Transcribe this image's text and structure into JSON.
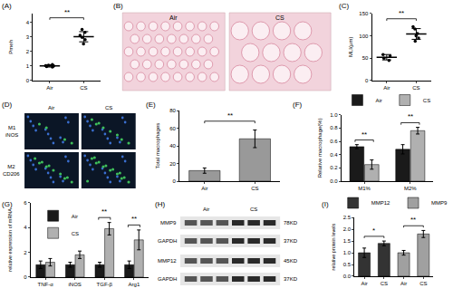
{
  "chart_data": [
    {
      "panel": "(A)",
      "type": "dot",
      "ylabel": "Pmeh",
      "categories": [
        "Air",
        "CS"
      ],
      "points": [
        [
          0.95,
          1.0,
          1.05,
          1.1,
          0.92,
          1.02
        ],
        [
          2.5,
          2.8,
          2.95,
          3.1,
          3.3,
          3.5
        ]
      ],
      "values": [
        1.0,
        3.0
      ],
      "errors": [
        0.08,
        0.35
      ],
      "color": "#000000",
      "ylim": [
        0,
        4.6
      ],
      "yticks": [
        0,
        1,
        2,
        3,
        4
      ],
      "annotations": [
        {
          "text": "**",
          "from": 0,
          "to": 1,
          "y": 4.3
        }
      ]
    },
    {
      "panel": "(C)",
      "type": "dot",
      "ylabel": "MLI(μm)",
      "categories": [
        "Air",
        "CS"
      ],
      "points": [
        [
          45,
          50,
          55,
          58
        ],
        [
          88,
          95,
          100,
          105,
          115,
          120
        ]
      ],
      "values": [
        52,
        104
      ],
      "errors": [
        6,
        12
      ],
      "color": "#000000",
      "ylim": [
        0,
        150
      ],
      "yticks": [
        0,
        50,
        100,
        150
      ],
      "annotations": [
        {
          "text": "**",
          "from": 0,
          "to": 1,
          "y": 138
        }
      ]
    },
    {
      "panel": "(E)",
      "type": "bar",
      "ylabel": "Total macrophages",
      "categories": [
        "Air",
        "CS"
      ],
      "values": [
        12,
        48
      ],
      "errors": [
        3,
        10
      ],
      "color": "#999999",
      "ylim": [
        0,
        80
      ],
      "yticks": [
        0,
        20,
        40,
        60,
        80
      ],
      "annotations": [
        {
          "text": "**",
          "from": 0,
          "to": 1,
          "y": 68
        }
      ]
    },
    {
      "panel": "(F)",
      "type": "bar",
      "ylabel": "Relative macrophage(%)",
      "categories": [
        "M1%",
        "M2%"
      ],
      "series": [
        {
          "name": "Air",
          "color": "#1a1a1a",
          "values": [
            0.52,
            0.48
          ],
          "errors": [
            0.03,
            0.07
          ]
        },
        {
          "name": "CS",
          "color": "#b0b0b0",
          "values": [
            0.25,
            0.76
          ],
          "errors": [
            0.07,
            0.05
          ]
        }
      ],
      "ylim": [
        0,
        1
      ],
      "yticks": [
        {
          "value": 0,
          "label": "0.0"
        },
        0.2,
        0.4,
        0.6,
        0.8,
        {
          "value": 1,
          "label": "1.0"
        }
      ],
      "legend": "top",
      "annotations": [
        {
          "text": "**",
          "category": 0,
          "y": 0.62
        },
        {
          "text": "**",
          "category": 1,
          "y": 0.88
        }
      ]
    },
    {
      "panel": "(G)",
      "type": "bar",
      "ylabel": "relative expression of mRNA",
      "categories": [
        "TNF-α",
        "iNOS",
        "TGF-β",
        "Arg1"
      ],
      "series": [
        {
          "name": "Air",
          "color": "#1a1a1a",
          "values": [
            1,
            1,
            1,
            1
          ],
          "errors": [
            0.3,
            0.2,
            0.2,
            0.3
          ]
        },
        {
          "name": "CS",
          "color": "#b0b0b0",
          "values": [
            1.2,
            1.8,
            3.9,
            3.0
          ],
          "errors": [
            0.3,
            0.3,
            0.5,
            0.8
          ]
        }
      ],
      "ylim": [
        0,
        6
      ],
      "yticks": [
        0,
        2,
        4,
        6
      ],
      "legend": "top left",
      "annotations": [
        {
          "text": "**",
          "category": 2,
          "y": 4.8
        },
        {
          "text": "**",
          "category": 3,
          "y": 4.2
        }
      ]
    },
    {
      "panel": "(I)",
      "type": "bar",
      "ylabel": "relative protein levels",
      "categories": [
        "Air",
        "CS",
        "Air",
        "CS"
      ],
      "series": [
        {
          "name": "MMP12",
          "color": "#333333",
          "values": [
            1.0,
            1.4,
            null,
            null
          ],
          "errors": [
            0.2,
            0.1,
            null,
            null
          ]
        },
        {
          "name": "MMP9",
          "color": "#a0a0a0",
          "values": [
            null,
            null,
            1.0,
            1.8
          ],
          "errors": [
            null,
            null,
            0.1,
            0.15
          ]
        }
      ],
      "ylim": [
        0,
        2.5
      ],
      "yticks": [
        {
          "value": 0,
          "label": "0.0"
        },
        0.5,
        {
          "value": 1,
          "label": "1.0"
        },
        1.5,
        {
          "value": 2,
          "label": "2.0"
        },
        2.5
      ],
      "legend": "top",
      "annotations": [
        {
          "text": "*",
          "from": 0,
          "to": 1,
          "y": 1.7
        },
        {
          "text": "**",
          "from": 2,
          "to": 3,
          "y": 2.15
        }
      ]
    }
  ],
  "images": [
    {
      "panel": "(B)",
      "type": "histology",
      "labels": [
        "Air",
        "CS"
      ]
    },
    {
      "panel": "(D)",
      "type": "immunofluorescence",
      "columns": [
        "Air",
        "CS"
      ],
      "rows": [
        [
          "M1",
          "iNOS"
        ],
        [
          "M2",
          "CD206"
        ]
      ]
    },
    {
      "panel": "(H)",
      "type": "western blot",
      "columns": [
        "Air",
        "CS"
      ],
      "rows": [
        {
          "protein": "MMP9",
          "size": "78KD"
        },
        {
          "protein": "GAPDH",
          "size": "37KD"
        },
        {
          "protein": "MMP12",
          "size": "45KD"
        },
        {
          "protein": "GAPDH",
          "size": "37KD"
        }
      ]
    }
  ]
}
